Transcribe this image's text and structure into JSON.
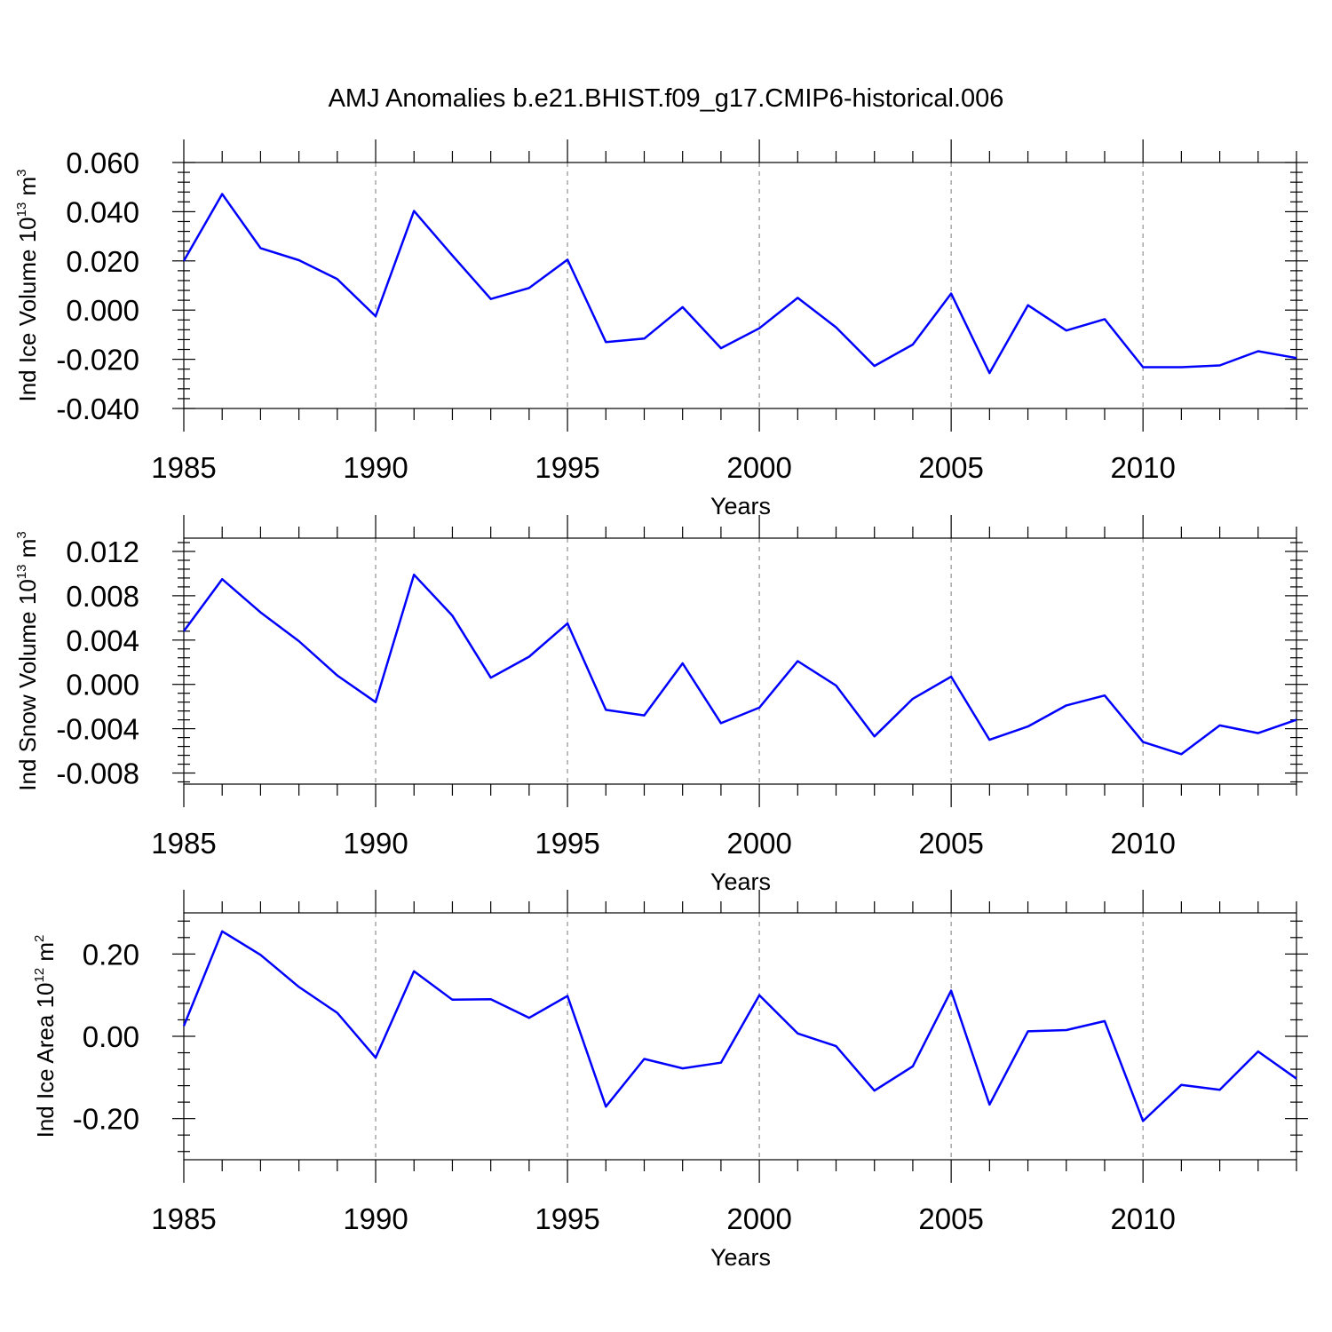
{
  "title": "AMJ Anomalies b.e21.BHIST.f09_g17.CMIP6-historical.006",
  "line_color": "#0000ff",
  "chart_data": [
    {
      "type": "line",
      "ylabel": {
        "text": "Ind Ice Volume 10",
        "exp": "13",
        "unit": " m",
        "unit_exp": "3"
      },
      "xlabel": "Years",
      "xlim": [
        1985,
        2014
      ],
      "ylim": [
        -0.04,
        0.06
      ],
      "x_ticks": [
        1985,
        1990,
        1995,
        2000,
        2005,
        2010
      ],
      "x_tick_labels": [
        "1985",
        "1990",
        "1995",
        "2000",
        "2005",
        "2010"
      ],
      "y_ticks": [
        -0.04,
        -0.02,
        0.0,
        0.02,
        0.04,
        0.06
      ],
      "y_tick_labels": [
        "-0.040",
        "-0.020",
        "0.000",
        "0.020",
        "0.040",
        "0.060"
      ],
      "grid": "vertical dashed at labeled years",
      "x": [
        1985,
        1986,
        1987,
        1988,
        1989,
        1990,
        1991,
        1992,
        1993,
        1994,
        1995,
        1996,
        1997,
        1998,
        1999,
        2000,
        2001,
        2002,
        2003,
        2004,
        2005,
        2006,
        2007,
        2008,
        2009,
        2010,
        2011,
        2012,
        2013,
        2014
      ],
      "values": [
        0.02,
        0.0472,
        0.0252,
        0.0203,
        0.0126,
        -0.0025,
        0.0403,
        0.0222,
        0.0045,
        0.009,
        0.0205,
        -0.013,
        -0.0116,
        0.0012,
        -0.0155,
        -0.0074,
        0.005,
        -0.007,
        -0.0227,
        -0.014,
        0.0067,
        -0.0256,
        0.002,
        -0.0083,
        -0.0037,
        -0.0232,
        -0.0232,
        -0.0225,
        -0.0167,
        -0.0195
      ]
    },
    {
      "type": "line",
      "ylabel": {
        "text": "Ind Snow Volume 10",
        "exp": "13",
        "unit": " m",
        "unit_exp": "3"
      },
      "xlabel": "Years",
      "xlim": [
        1985,
        2014
      ],
      "ylim": [
        -0.009,
        0.0132
      ],
      "x_ticks": [
        1985,
        1990,
        1995,
        2000,
        2005,
        2010
      ],
      "x_tick_labels": [
        "1985",
        "1990",
        "1995",
        "2000",
        "2005",
        "2010"
      ],
      "y_ticks": [
        -0.008,
        -0.004,
        0.0,
        0.004,
        0.008,
        0.012
      ],
      "y_tick_labels": [
        "-0.008",
        "-0.004",
        "0.000",
        "0.004",
        "0.008",
        "0.012"
      ],
      "grid": "vertical dashed at labeled years",
      "x": [
        1985,
        1986,
        1987,
        1988,
        1989,
        1990,
        1991,
        1992,
        1993,
        1994,
        1995,
        1996,
        1997,
        1998,
        1999,
        2000,
        2001,
        2002,
        2003,
        2004,
        2005,
        2006,
        2007,
        2008,
        2009,
        2010,
        2011,
        2012,
        2013,
        2014
      ],
      "values": [
        0.0048,
        0.0095,
        0.0065,
        0.0039,
        0.0008,
        -0.0016,
        0.0099,
        0.0062,
        0.0006,
        0.0025,
        0.0055,
        -0.0023,
        -0.0028,
        0.0019,
        -0.0035,
        -0.0021,
        0.0021,
        -0.0001,
        -0.0047,
        -0.0013,
        0.0007,
        -0.005,
        -0.0038,
        -0.0019,
        -0.001,
        -0.0052,
        -0.0063,
        -0.0037,
        -0.0044,
        -0.0032
      ]
    },
    {
      "type": "line",
      "ylabel": {
        "text": "Ind Ice Area 10",
        "exp": "12",
        "unit": " m",
        "unit_exp": "2"
      },
      "xlabel": "Years",
      "xlim": [
        1985,
        2014
      ],
      "ylim": [
        -0.3,
        0.3
      ],
      "x_ticks": [
        1985,
        1990,
        1995,
        2000,
        2005,
        2010
      ],
      "x_tick_labels": [
        "1985",
        "1990",
        "1995",
        "2000",
        "2005",
        "2010"
      ],
      "y_ticks": [
        -0.2,
        0.0,
        0.2
      ],
      "y_tick_labels": [
        "-0.20",
        "0.00",
        "0.20"
      ],
      "grid": "vertical dashed at labeled years",
      "x": [
        1985,
        1986,
        1987,
        1988,
        1989,
        1990,
        1991,
        1992,
        1993,
        1994,
        1995,
        1996,
        1997,
        1998,
        1999,
        2000,
        2001,
        2002,
        2003,
        2004,
        2005,
        2006,
        2007,
        2008,
        2009,
        2010,
        2011,
        2012,
        2013,
        2014
      ],
      "values": [
        0.025,
        0.255,
        0.198,
        0.12,
        0.057,
        -0.052,
        0.158,
        0.089,
        0.09,
        0.045,
        0.098,
        -0.171,
        -0.055,
        -0.078,
        -0.064,
        0.1,
        0.007,
        -0.024,
        -0.132,
        -0.073,
        0.111,
        -0.166,
        0.012,
        0.015,
        0.037,
        -0.206,
        -0.118,
        -0.13,
        -0.037,
        -0.103
      ]
    }
  ]
}
